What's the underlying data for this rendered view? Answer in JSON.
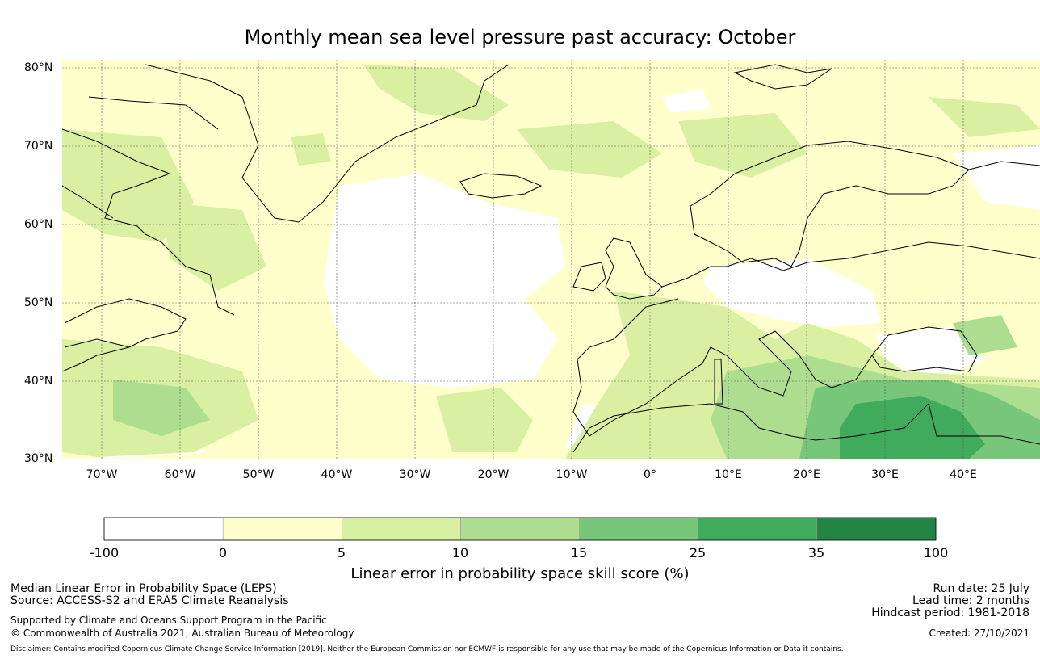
{
  "title": "Monthly mean sea level pressure past accuracy: October",
  "map": {
    "lat_ticks": [
      "80°N",
      "70°N",
      "60°N",
      "50°N",
      "40°N",
      "30°N"
    ],
    "lon_ticks": [
      "70°W",
      "60°W",
      "50°W",
      "40°W",
      "30°W",
      "20°W",
      "10°W",
      "0°",
      "10°E",
      "20°E",
      "30°E",
      "40°E"
    ],
    "colors": {
      "land_outline": "#000000",
      "gridline": "#555555"
    }
  },
  "colorbar": {
    "ticks": [
      "-100",
      "0",
      "5",
      "10",
      "15",
      "25",
      "35",
      "100"
    ],
    "colors": [
      "#ffffff",
      "#ffffcc",
      "#d9f0a3",
      "#addd8e",
      "#78c679",
      "#41ab5d",
      "#238443"
    ],
    "label": "Linear error in probability space skill score (%)"
  },
  "footer": {
    "left_line1": "Median Linear Error in Probability Space (LEPS)",
    "left_line2": "Source: ACCESS-S2 and ERA5 Climate Reanalysis",
    "left_line3": "Supported by Climate and Oceans Support Program in the Pacific",
    "left_line4": "© Commonwealth of Australia 2021, Australian Bureau of Meteorology",
    "right_line1": "Run date: 25 July",
    "right_line2": "Lead time: 2 months",
    "right_line3": "Hindcast period: 1981-2018",
    "right_line4": "Created: 27/10/2021",
    "disclaimer": "Disclaimer: Contains modified Copernicus Climate Change Service Information [2019]. Neither the European Commission nor ECMWF is responsible for any use that may be made of the Copernicus Information or Data it contains."
  }
}
